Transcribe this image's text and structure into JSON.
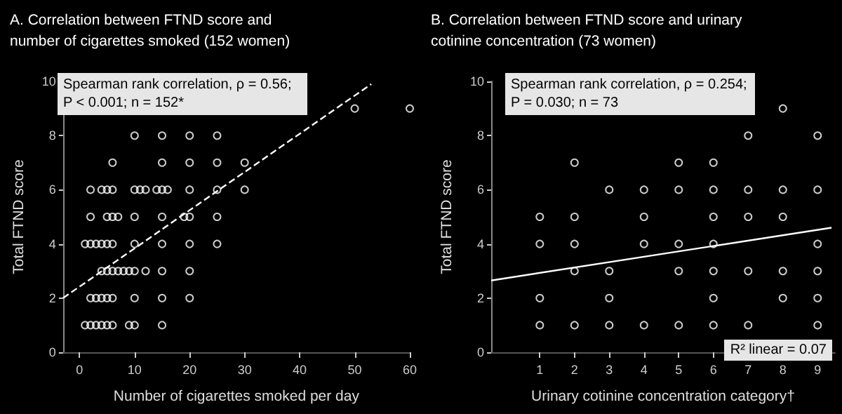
{
  "chart_data": [
    {
      "type": "scatter",
      "title": "A. Correlation between FTND score and number of cigarettes smoked (152 women)",
      "xlabel": "Number of cigarettes smoked per day",
      "ylabel": "Total FTND score",
      "xlim": [
        -3,
        60
      ],
      "xticks": [
        0,
        10,
        20,
        30,
        40,
        50,
        60
      ],
      "ylim": [
        0,
        10
      ],
      "yticks": [
        0,
        2,
        4,
        6,
        8,
        10
      ],
      "grid": false,
      "marker": "circle",
      "annotations": [
        "Spearman rank correlation, ρ = 0.56; P < 0.001; n = 152*"
      ],
      "series": [
        {
          "color": "#ffffff",
          "x": [
            50,
            60,
            10,
            15,
            20,
            25,
            6,
            15,
            20,
            25,
            30,
            2,
            4,
            5,
            6,
            10,
            11,
            12,
            14,
            15,
            16,
            20,
            25,
            30,
            2,
            5,
            6,
            7,
            10,
            15,
            19,
            20,
            25,
            1,
            2,
            3,
            4,
            5,
            6,
            10,
            15,
            20,
            25,
            4,
            5,
            6,
            7,
            8,
            9,
            10,
            12,
            15,
            20,
            2,
            3,
            4,
            5,
            6,
            10,
            15,
            20,
            1,
            2,
            3,
            4,
            5,
            6,
            9,
            10,
            15
          ],
          "values": [
            9,
            9,
            8,
            8,
            8,
            8,
            7,
            7,
            7,
            7,
            7,
            6,
            6,
            6,
            6,
            6,
            6,
            6,
            6,
            6,
            6,
            6,
            6,
            6,
            5,
            5,
            5,
            5,
            5,
            5,
            5,
            5,
            5,
            4,
            4,
            4,
            4,
            4,
            4,
            4,
            4,
            4,
            4,
            3,
            3,
            3,
            3,
            3,
            3,
            3,
            3,
            3,
            3,
            2,
            2,
            2,
            2,
            2,
            2,
            2,
            2,
            1,
            1,
            1,
            1,
            1,
            1,
            1,
            1,
            1
          ]
        },
        {
          "type": "line",
          "color": "#ffffff",
          "line_style": "dashed",
          "marker": "none",
          "x": [
            -3,
            53
          ],
          "values": [
            2,
            9.9
          ]
        }
      ]
    },
    {
      "type": "scatter",
      "title": "B. Correlation between FTND score and urinary cotinine concentration (73 women)",
      "xlabel": "Urinary cotinine concentration category†",
      "ylabel": "Total FTND score",
      "xlim": [
        -0.4,
        9.5
      ],
      "xticks": [
        1,
        2,
        3,
        4,
        5,
        6,
        7,
        8,
        9
      ],
      "ylim": [
        0,
        10
      ],
      "yticks": [
        0,
        2,
        4,
        6,
        8,
        10
      ],
      "grid": false,
      "marker": "circle",
      "annotations": [
        "Spearman rank correlation, ρ = 0.254; P = 0.030; n = 73",
        "R² linear = 0.07"
      ],
      "series": [
        {
          "color": "#ffffff",
          "x": [
            8,
            7,
            9,
            2,
            5,
            6,
            3,
            4,
            5,
            6,
            7,
            8,
            9,
            1,
            2,
            4,
            6,
            7,
            8,
            1,
            2,
            4,
            5,
            6,
            9,
            2,
            3,
            5,
            6,
            7,
            8,
            9,
            1,
            3,
            6,
            8,
            9,
            1,
            2,
            3,
            4,
            5,
            6,
            7,
            9
          ],
          "values": [
            9,
            8,
            8,
            7,
            7,
            7,
            6,
            6,
            6,
            6,
            6,
            6,
            6,
            5,
            5,
            5,
            5,
            5,
            5,
            4,
            4,
            4,
            4,
            4,
            4,
            3,
            3,
            3,
            3,
            3,
            3,
            3,
            2,
            2,
            2,
            2,
            2,
            1,
            1,
            1,
            1,
            1,
            1,
            1,
            1
          ]
        },
        {
          "type": "line",
          "color": "#ffffff",
          "line_style": "solid",
          "marker": "none",
          "x": [
            -0.4,
            9.4
          ],
          "values": [
            2.65,
            4.6
          ]
        }
      ]
    }
  ]
}
